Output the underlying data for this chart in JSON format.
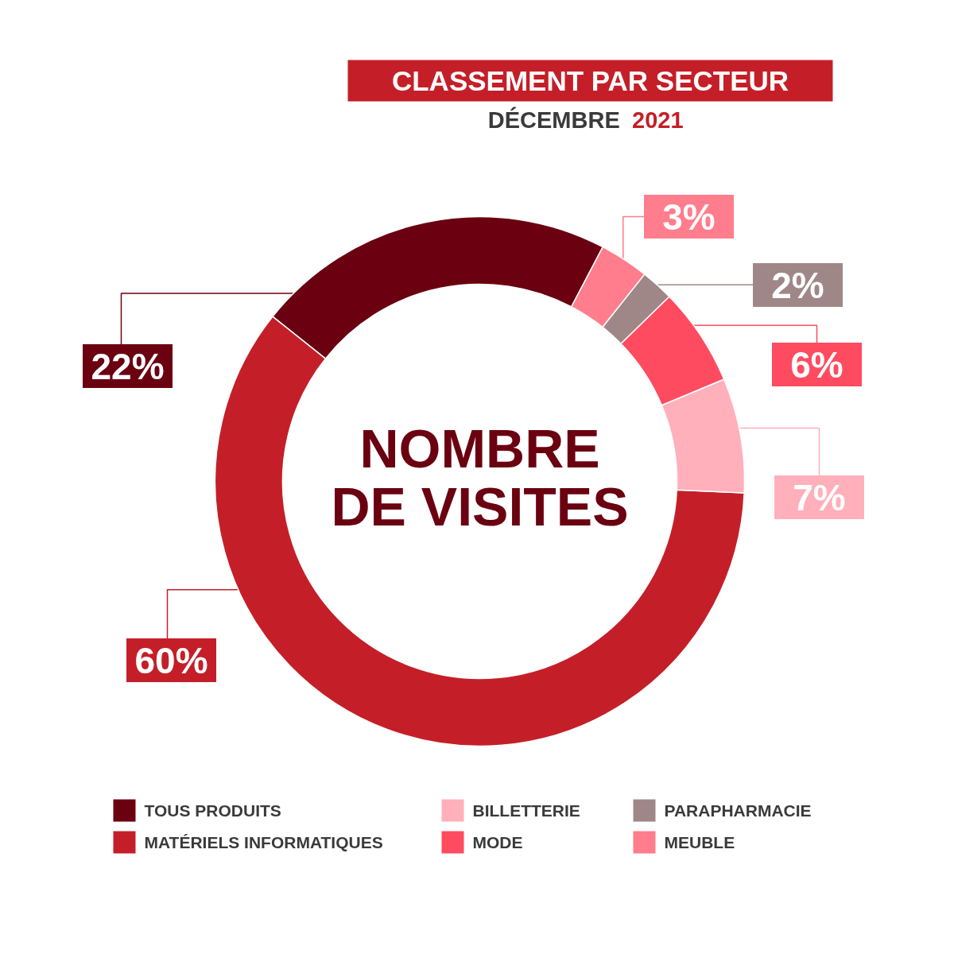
{
  "chart_data": {
    "type": "donut",
    "title": "CLASSEMENT PAR SECTEUR",
    "subtitle": "DÉCEMBRE 2021",
    "annotations": [
      "NOMBRE\nDE VISITES"
    ],
    "categories": [
      "TOUS PRODUITS",
      "MATÉRIELS INFORMATIQUES",
      "BILLETTERIE",
      "MODE",
      "PARAPHARMACIE",
      "MEUBLE"
    ],
    "values": [
      22,
      60,
      7,
      6,
      2,
      3
    ],
    "colors": [
      "#6a0010",
      "#c41f28",
      "#ffb0ba",
      "#ff4b60",
      "#a08787",
      "#ff7d8c"
    ],
    "value_labels": [
      "22%",
      "60%",
      "7%",
      "6%",
      "2%",
      "3%"
    ],
    "legend": "bottom"
  }
}
